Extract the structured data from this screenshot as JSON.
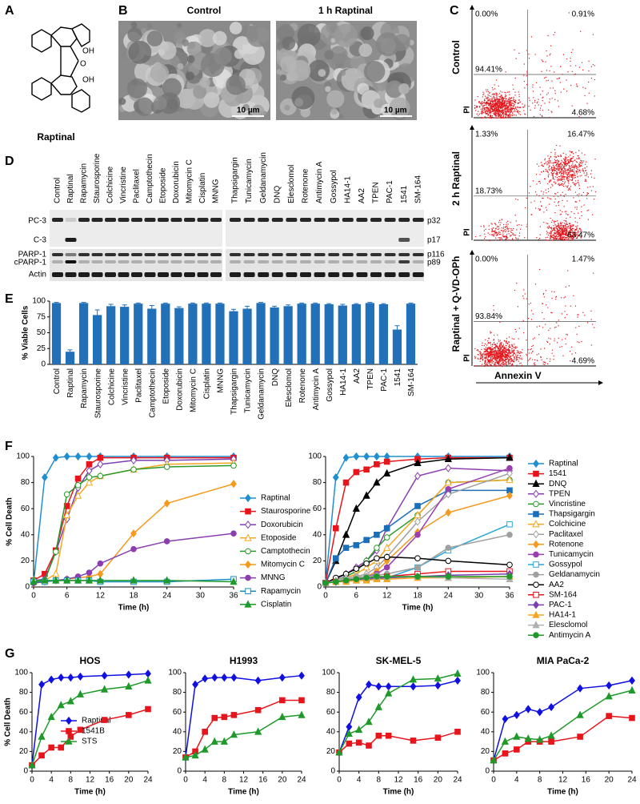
{
  "panel_labels": [
    "A",
    "B",
    "C",
    "D",
    "E",
    "F",
    "G"
  ],
  "structure": {
    "label": "Raptinal",
    "atoms": [
      "OH",
      "O",
      "OH"
    ]
  },
  "sem": {
    "titles": [
      "Control",
      "1 h Raptinal"
    ],
    "scale_bars": [
      "10 µm",
      "10 µm"
    ]
  },
  "flow": {
    "y_label": "PI",
    "x_label": "Annexin V",
    "plots": [
      {
        "label": "Control",
        "quadrants": [
          "0.00%",
          "0.91%",
          "94.41%",
          "4.68%"
        ]
      },
      {
        "label": "2 h Raptinal",
        "quadrants": [
          "1.33%",
          "16.47%",
          "18.73%",
          "63.47%"
        ]
      },
      {
        "label": "Raptinal + Q-VD-OPh",
        "quadrants": [
          "0.00%",
          "1.47%",
          "93.84%",
          "4.69%"
        ]
      }
    ]
  },
  "blot": {
    "lanes": [
      "Control",
      "Raptinal",
      "Rapamycin",
      "Staurosporine",
      "Colchicine",
      "Vincristine",
      "Paclitaxel",
      "Camptothecin",
      "Etoposide",
      "Doxorubicin",
      "Mitomycin C",
      "Cisplatin",
      "MNNG",
      "Thapsigargin",
      "Tunicamycin",
      "Geldanamycin",
      "DNQ",
      "Elesclomol",
      "Rotenone",
      "Antimycin A",
      "Gossypol",
      "HA14-1",
      "AA2",
      "TPEN",
      "PAC-1",
      "1541",
      "SM-164"
    ],
    "left_labels": [
      "PC-3",
      "C-3",
      "PARP-1",
      "cPARP-1",
      "Actin"
    ],
    "right_labels": [
      "p32",
      "p17",
      "p116",
      "p89"
    ]
  },
  "chart_data": [
    {
      "type": "bar",
      "y_label": "% Viable Cells",
      "color": "#2271b8",
      "ylim": [
        0,
        100
      ],
      "yticks": [
        0,
        25,
        50,
        75,
        100
      ],
      "categories": [
        "Control",
        "Raptinal",
        "Rapamycin",
        "Staurosporine",
        "Colchicine",
        "Vincristine",
        "Paclitaxel",
        "Camptothecin",
        "Etoposide",
        "Doxorubicin",
        "Mitomycin C",
        "Cisplatin",
        "MNNG",
        "Thapsigargin",
        "Tunicamycin",
        "Geldanamycin",
        "DNQ",
        "Elesclomol",
        "Rotenone",
        "Antimycin A",
        "Gossypol",
        "HA14-1",
        "AA2",
        "TPEN",
        "PAC-1",
        "1541",
        "SM-164"
      ],
      "values": [
        97,
        20,
        97,
        78,
        92,
        91,
        96,
        88,
        96,
        89,
        96,
        96,
        96,
        84,
        88,
        97,
        90,
        92,
        96,
        96,
        95,
        93,
        95,
        97,
        95,
        55,
        96
      ],
      "errors": [
        1,
        3,
        1,
        8,
        3,
        3,
        1,
        5,
        1,
        2,
        1,
        1,
        1,
        3,
        4,
        1,
        2,
        2,
        1,
        1,
        1,
        2,
        1,
        1,
        1,
        6,
        1
      ]
    },
    {
      "type": "line",
      "y_label": "% Cell Death",
      "x_label": "Time (h)",
      "xlim": [
        0,
        36
      ],
      "xticks": [
        0,
        6,
        12,
        18,
        24,
        30,
        36
      ],
      "ylim": [
        0,
        100
      ],
      "yticks": [
        0,
        20,
        40,
        60,
        80,
        100
      ],
      "x": [
        0,
        2,
        4,
        6,
        8,
        10,
        12,
        18,
        24,
        36
      ],
      "series": [
        {
          "name": "Raptinal",
          "color": "#1f8fd0",
          "marker": "diamond",
          "filled": true,
          "values": [
            3,
            84,
            99,
            100,
            100,
            100,
            100,
            100,
            100,
            100
          ]
        },
        {
          "name": "Staurosporine",
          "color": "#e8141c",
          "marker": "square",
          "filled": true,
          "values": [
            5,
            10,
            28,
            62,
            83,
            94,
            99,
            99,
            99,
            99
          ]
        },
        {
          "name": "Doxorubicin",
          "color": "#7a3fb0",
          "marker": "diamond",
          "filled": false,
          "values": [
            5,
            6,
            27,
            52,
            76,
            89,
            94,
            97,
            97,
            98
          ]
        },
        {
          "name": "Etoposide",
          "color": "#f5a623",
          "marker": "triangle",
          "filled": false,
          "values": [
            5,
            5,
            10,
            55,
            70,
            80,
            85,
            90,
            94,
            95
          ]
        },
        {
          "name": "Camptothecin",
          "color": "#2a9a2a",
          "marker": "circle",
          "filled": false,
          "values": [
            5,
            5,
            27,
            71,
            78,
            84,
            85,
            90,
            92,
            93
          ]
        },
        {
          "name": "Mitomycin C",
          "color": "#f59a1e",
          "marker": "diamond",
          "filled": true,
          "values": [
            3,
            4,
            5,
            6,
            7,
            8,
            10,
            41,
            64,
            79
          ]
        },
        {
          "name": "MNNG",
          "color": "#8a3fb0",
          "marker": "circle",
          "filled": true,
          "values": [
            3,
            4,
            5,
            6,
            8,
            11,
            18,
            29,
            35,
            41
          ]
        },
        {
          "name": "Rapamycin",
          "color": "#1a8fc0",
          "marker": "square",
          "filled": false,
          "values": [
            4,
            4,
            5,
            5,
            5,
            5,
            4,
            4,
            4,
            6
          ]
        },
        {
          "name": "Cisplatin",
          "color": "#1f9a2a",
          "marker": "triangle",
          "filled": true,
          "values": [
            4,
            5,
            5,
            5,
            5,
            5,
            5,
            5,
            5,
            4
          ]
        }
      ]
    },
    {
      "type": "line",
      "x_label": "Time (h)",
      "xlim": [
        0,
        36
      ],
      "xticks": [
        0,
        6,
        12,
        18,
        24,
        30,
        36
      ],
      "ylim": [
        0,
        100
      ],
      "yticks": [
        0,
        20,
        40,
        60,
        80,
        100
      ],
      "x": [
        0,
        2,
        4,
        6,
        8,
        10,
        12,
        18,
        24,
        36
      ],
      "series": [
        {
          "name": "Raptinal",
          "color": "#1f8fd0",
          "marker": "diamond",
          "filled": true,
          "values": [
            3,
            84,
            99,
            100,
            100,
            100,
            100,
            100,
            100,
            100
          ]
        },
        {
          "name": "1541",
          "color": "#e8141c",
          "marker": "square",
          "filled": true,
          "values": [
            3,
            45,
            80,
            88,
            90,
            94,
            96,
            98,
            99,
            99
          ]
        },
        {
          "name": "DNQ",
          "color": "#000000",
          "marker": "triangle",
          "filled": true,
          "values": [
            3,
            20,
            40,
            60,
            70,
            80,
            87,
            95,
            98,
            99
          ]
        },
        {
          "name": "TPEN",
          "color": "#8a3fb0",
          "marker": "diamond",
          "filled": false,
          "values": [
            3,
            6,
            10,
            15,
            20,
            28,
            45,
            85,
            91,
            89
          ]
        },
        {
          "name": "Vincristine",
          "color": "#2a9a2a",
          "marker": "circle",
          "filled": false,
          "values": [
            3,
            5,
            8,
            12,
            20,
            30,
            38,
            55,
            80,
            82
          ]
        },
        {
          "name": "Thapsigargin",
          "color": "#1a6fb8",
          "marker": "square",
          "filled": true,
          "values": [
            3,
            22,
            30,
            32,
            36,
            40,
            45,
            62,
            74,
            74
          ]
        },
        {
          "name": "Colchicine",
          "color": "#f5a623",
          "marker": "triangle",
          "filled": false,
          "values": [
            3,
            5,
            7,
            10,
            15,
            20,
            30,
            55,
            80,
            82
          ]
        },
        {
          "name": "Paclitaxel",
          "color": "#a0a0a0",
          "marker": "diamond",
          "filled": false,
          "values": [
            3,
            5,
            7,
            8,
            10,
            15,
            23,
            50,
            71,
            87
          ]
        },
        {
          "name": "Rotenone",
          "color": "#f59a1e",
          "marker": "diamond",
          "filled": true,
          "values": [
            3,
            4,
            5,
            6,
            8,
            12,
            20,
            42,
            57,
            70
          ]
        },
        {
          "name": "Tunicamycin",
          "color": "#9a3fb0",
          "marker": "circle",
          "filled": true,
          "values": [
            3,
            4,
            5,
            6,
            8,
            10,
            15,
            40,
            75,
            91
          ]
        },
        {
          "name": "Gossypol",
          "color": "#29a8d8",
          "marker": "square",
          "filled": false,
          "values": [
            3,
            4,
            5,
            5,
            6,
            6,
            7,
            15,
            28,
            48
          ]
        },
        {
          "name": "Geldanamycin",
          "color": "#a0a0a0",
          "marker": "circle",
          "filled": true,
          "values": [
            3,
            5,
            6,
            7,
            8,
            9,
            10,
            15,
            30,
            40
          ]
        },
        {
          "name": "AA2",
          "color": "#000000",
          "marker": "circle",
          "filled": false,
          "values": [
            3,
            7,
            10,
            14,
            18,
            22,
            23,
            22,
            20,
            17
          ]
        },
        {
          "name": "SM-164",
          "color": "#e8141c",
          "marker": "square",
          "filled": false,
          "values": [
            3,
            4,
            5,
            6,
            6,
            7,
            8,
            10,
            12,
            12
          ]
        },
        {
          "name": "PAC-1",
          "color": "#7a3fb0",
          "marker": "diamond",
          "filled": true,
          "values": [
            3,
            4,
            5,
            6,
            6,
            7,
            7,
            8,
            9,
            10
          ]
        },
        {
          "name": "HA14-1",
          "color": "#f5a623",
          "marker": "triangle",
          "filled": true,
          "values": [
            3,
            4,
            4,
            5,
            5,
            6,
            6,
            7,
            7,
            8
          ]
        },
        {
          "name": "Elesclomol",
          "color": "#b0b0b0",
          "marker": "triangle",
          "filled": true,
          "values": [
            3,
            5,
            7,
            8,
            8,
            8,
            8,
            8,
            7,
            6
          ]
        },
        {
          "name": "Antimycin A",
          "color": "#1f9a2a",
          "marker": "circle",
          "filled": true,
          "values": [
            3,
            4,
            5,
            6,
            7,
            8,
            8,
            8,
            8,
            8
          ]
        }
      ]
    },
    {
      "type": "line",
      "title": "HOS",
      "y_label": "% Cell Death",
      "x_label": "Time (h)",
      "xlim": [
        0,
        24
      ],
      "xticks": [
        0,
        4,
        8,
        12,
        16,
        20,
        24
      ],
      "ylim": [
        0,
        100
      ],
      "yticks": [
        0,
        20,
        40,
        60,
        80,
        100
      ],
      "legend": "lower right",
      "x": [
        0,
        2,
        4,
        6,
        8,
        10,
        15,
        20,
        24
      ],
      "series": [
        {
          "name": "Raptinal",
          "color": "#1010e0",
          "marker": "diamond",
          "filled": true,
          "values": [
            6,
            88,
            93,
            95,
            95,
            96,
            97,
            98,
            99
          ]
        },
        {
          "name": "1541B",
          "color": "#e8141c",
          "marker": "square",
          "filled": true,
          "values": [
            6,
            16,
            24,
            24,
            35,
            42,
            52,
            57,
            63
          ]
        },
        {
          "name": "STS",
          "color": "#1f9a2a",
          "marker": "triangle",
          "filled": true,
          "values": [
            6,
            35,
            55,
            67,
            71,
            78,
            83,
            86,
            92
          ]
        }
      ]
    },
    {
      "type": "line",
      "title": "H1993",
      "x_label": "Time (h)",
      "xlim": [
        0,
        24
      ],
      "xticks": [
        0,
        4,
        8,
        12,
        16,
        20,
        24
      ],
      "ylim": [
        0,
        100
      ],
      "yticks": [
        0,
        20,
        40,
        60,
        80,
        100
      ],
      "x": [
        0,
        2,
        4,
        6,
        8,
        10,
        15,
        20,
        24
      ],
      "series": [
        {
          "color": "#1010e0",
          "marker": "diamond",
          "filled": true,
          "values": [
            14,
            88,
            94,
            95,
            95,
            95,
            92,
            95,
            97
          ]
        },
        {
          "color": "#e8141c",
          "marker": "square",
          "filled": true,
          "values": [
            14,
            20,
            40,
            54,
            55,
            57,
            62,
            72,
            72
          ]
        },
        {
          "color": "#1f9a2a",
          "marker": "triangle",
          "filled": true,
          "values": [
            14,
            16,
            22,
            30,
            30,
            37,
            40,
            55,
            57
          ]
        }
      ]
    },
    {
      "type": "line",
      "title": "SK-MEL-5",
      "x_label": "Time (h)",
      "xlim": [
        0,
        24
      ],
      "xticks": [
        0,
        4,
        8,
        12,
        16,
        20,
        24
      ],
      "ylim": [
        0,
        100
      ],
      "yticks": [
        0,
        20,
        40,
        60,
        80,
        100
      ],
      "x": [
        0,
        2,
        4,
        6,
        8,
        10,
        15,
        20,
        24
      ],
      "series": [
        {
          "color": "#1010e0",
          "marker": "diamond",
          "filled": true,
          "values": [
            19,
            45,
            75,
            88,
            86,
            86,
            86,
            87,
            92
          ]
        },
        {
          "color": "#e8141c",
          "marker": "square",
          "filled": true,
          "values": [
            19,
            28,
            29,
            26,
            36,
            36,
            31,
            34,
            40
          ]
        },
        {
          "color": "#1f9a2a",
          "marker": "triangle",
          "filled": true,
          "values": [
            19,
            38,
            42,
            50,
            65,
            79,
            93,
            94,
            99
          ]
        }
      ]
    },
    {
      "type": "line",
      "title": "MIA PaCa-2",
      "x_label": "Time (h)",
      "xlim": [
        0,
        24
      ],
      "xticks": [
        0,
        4,
        8,
        12,
        16,
        20,
        24
      ],
      "ylim": [
        0,
        100
      ],
      "yticks": [
        0,
        20,
        40,
        60,
        80,
        100
      ],
      "x": [
        0,
        2,
        4,
        6,
        8,
        10,
        15,
        20,
        24
      ],
      "series": [
        {
          "color": "#1010e0",
          "marker": "diamond",
          "filled": true,
          "values": [
            11,
            53,
            57,
            63,
            60,
            65,
            84,
            87,
            92
          ]
        },
        {
          "color": "#e8141c",
          "marker": "square",
          "filled": true,
          "values": [
            11,
            18,
            22,
            30,
            30,
            30,
            35,
            56,
            54
          ]
        },
        {
          "color": "#1f9a2a",
          "marker": "triangle",
          "filled": true,
          "values": [
            11,
            30,
            35,
            33,
            32,
            36,
            57,
            76,
            82
          ]
        }
      ]
    }
  ]
}
